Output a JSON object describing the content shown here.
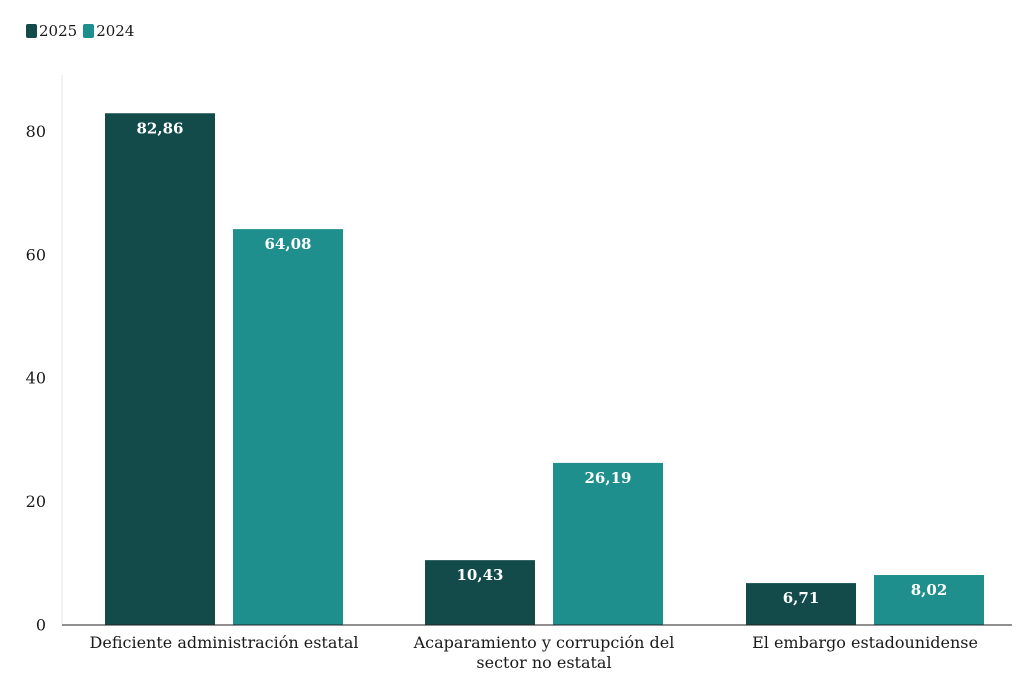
{
  "chart_data": {
    "type": "bar",
    "categories": [
      [
        "Deficiente administración estatal"
      ],
      [
        "Acaparamiento y corrupción del",
        "sector no estatal"
      ],
      [
        "El embargo estadounidense"
      ]
    ],
    "series": [
      {
        "name": "2025",
        "color": "#134b4b",
        "values": [
          82.86,
          10.43,
          6.71
        ],
        "labels": [
          "82,86",
          "10,43",
          "6,71"
        ]
      },
      {
        "name": "2024",
        "color": "#1e8f8c",
        "values": [
          64.08,
          26.19,
          8.02
        ],
        "labels": [
          "64,08",
          "26,19",
          "8,02"
        ]
      }
    ],
    "yticks": [
      0,
      20,
      40,
      60,
      80
    ],
    "ylim": [
      0,
      90
    ],
    "grid": false,
    "legend_position": "top-left",
    "title": "",
    "xlabel": "",
    "ylabel": ""
  }
}
